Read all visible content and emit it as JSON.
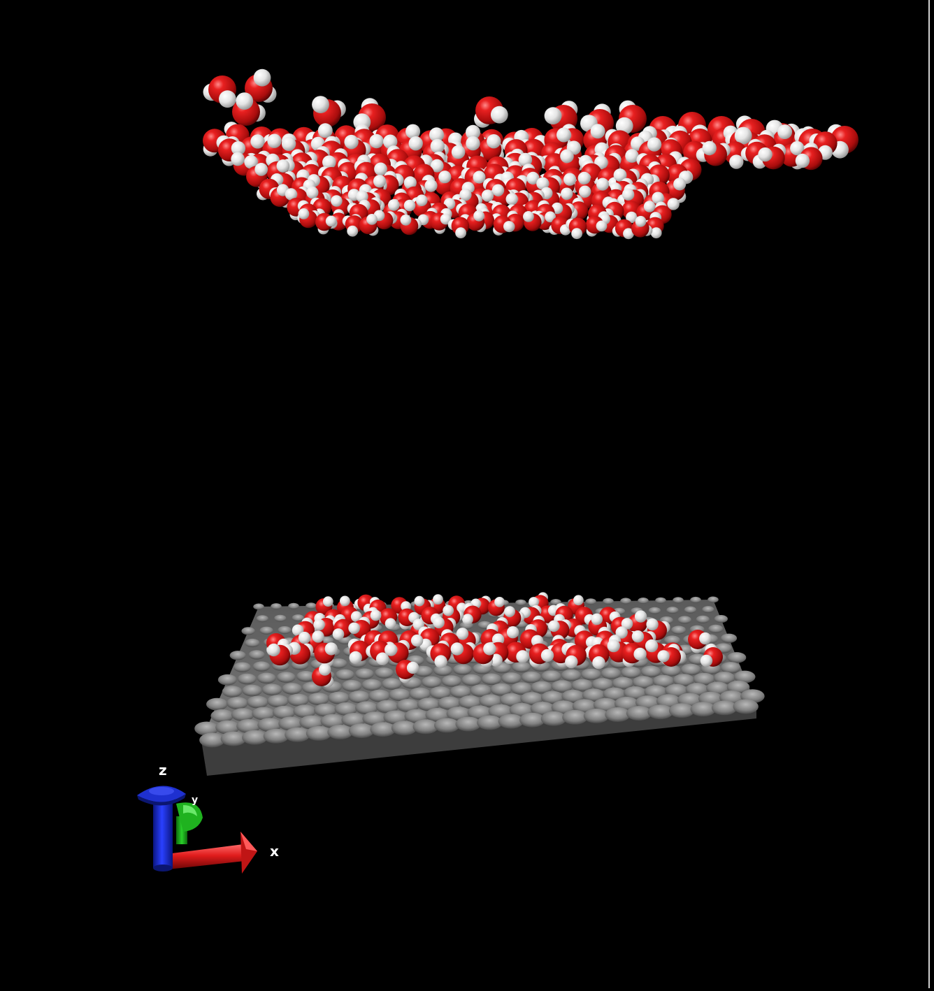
{
  "scene": {
    "background": "#000000",
    "colors": {
      "oxygen": "#d01a1a",
      "oxygen_dark": "#6a0606",
      "hydrogen": "#ffffff",
      "surface": "#8a8a8a",
      "surface_dark": "#3a3a3a"
    }
  },
  "axes": {
    "x_label": "x",
    "y_label": "y",
    "z_label": "z",
    "x_color": "#e01c1c",
    "y_color": "#1ea51e",
    "z_color": "#1c2fd6"
  }
}
